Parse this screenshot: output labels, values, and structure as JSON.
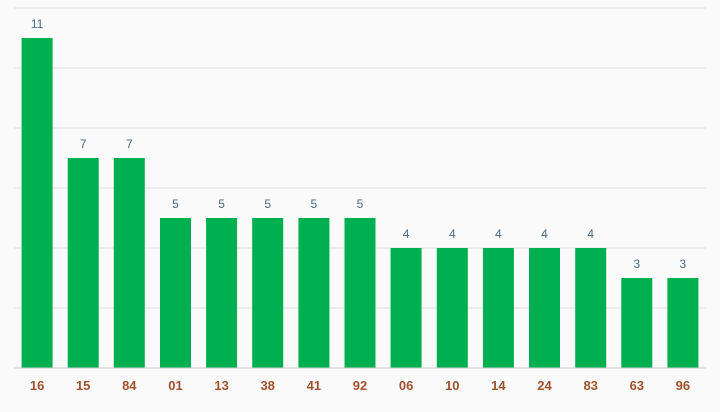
{
  "chart_data": {
    "type": "bar",
    "title": "",
    "xlabel": "",
    "ylabel": "",
    "categories": [
      "16",
      "15",
      "84",
      "01",
      "13",
      "38",
      "41",
      "92",
      "06",
      "10",
      "14",
      "24",
      "83",
      "63",
      "96"
    ],
    "values": [
      11,
      7,
      7,
      5,
      5,
      5,
      5,
      5,
      4,
      4,
      4,
      4,
      4,
      3,
      3
    ],
    "ylim": [
      0,
      12
    ],
    "grid": true,
    "y_tick_labels_visible": false,
    "colors": {
      "bar": "#00b050",
      "value_label": "#4a6a8a",
      "category_label": "#a0522d",
      "grid": "#dddddd",
      "axis": "#cccccc",
      "background": "#fafafa"
    }
  }
}
